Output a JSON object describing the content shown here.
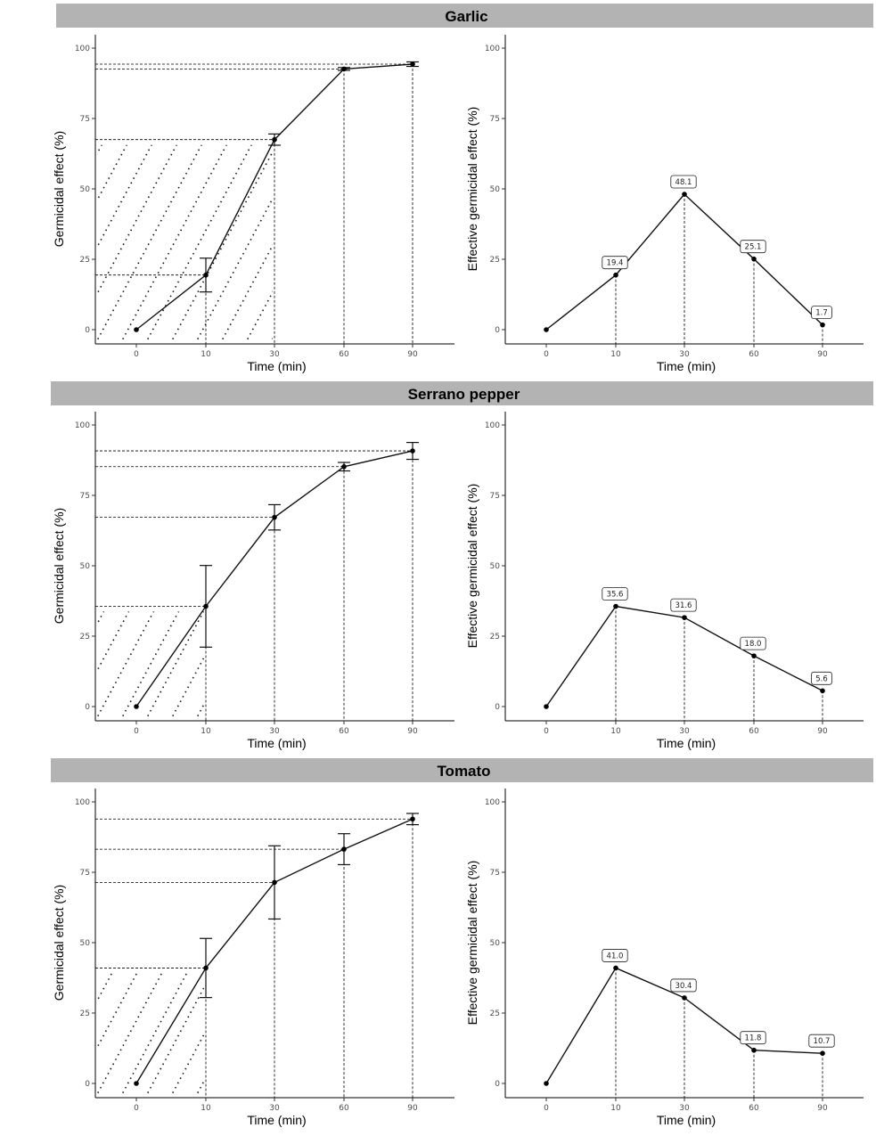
{
  "chart_data": [
    {
      "type": "line",
      "panel": "Garlic",
      "title": "Garlic",
      "x": [
        0,
        10,
        30,
        60,
        90
      ],
      "tick_labels": [
        "0",
        "10",
        "30",
        "60",
        "90"
      ],
      "left": {
        "ylabel": "Germicidal effect (%)",
        "xlabel": "Time (min)",
        "ylim": [
          0,
          100
        ],
        "yticks": [
          "0",
          "25",
          "50",
          "75",
          "100"
        ],
        "values": [
          0,
          19.4,
          67.5,
          92.6,
          94.3
        ],
        "error": [
          0,
          6.0,
          2.0,
          0.5,
          0.8
        ]
      },
      "right": {
        "ylabel": "Effective germicidal effect (%)",
        "xlabel": "Time (min)",
        "ylim": [
          0,
          100
        ],
        "yticks": [
          "0",
          "25",
          "50",
          "75",
          "100"
        ],
        "values": [
          0,
          19.4,
          48.1,
          25.1,
          1.7
        ],
        "labels": [
          "19.4",
          "48.1",
          "25.1",
          "1.7"
        ]
      }
    },
    {
      "type": "line",
      "panel": "Serrano pepper",
      "title": "Serrano pepper",
      "x": [
        0,
        10,
        30,
        60,
        90
      ],
      "tick_labels": [
        "0",
        "10",
        "30",
        "60",
        "90"
      ],
      "left": {
        "ylabel": "Germicidal effect (%)",
        "xlabel": "Time (min)",
        "ylim": [
          0,
          100
        ],
        "yticks": [
          "0",
          "25",
          "50",
          "75",
          "100"
        ],
        "values": [
          0,
          35.6,
          67.2,
          85.2,
          90.8
        ],
        "error": [
          0,
          14.5,
          4.5,
          1.5,
          3.0
        ]
      },
      "right": {
        "ylabel": "Effective germicidal effect (%)",
        "xlabel": "Time (min)",
        "ylim": [
          0,
          100
        ],
        "yticks": [
          "0",
          "25",
          "50",
          "75",
          "100"
        ],
        "values": [
          0,
          35.6,
          31.6,
          18.0,
          5.6
        ],
        "labels": [
          "35.6",
          "31.6",
          "18.0",
          "5.6"
        ]
      }
    },
    {
      "type": "line",
      "panel": "Tomato",
      "title": "Tomato",
      "x": [
        0,
        10,
        30,
        60,
        90
      ],
      "tick_labels": [
        "0",
        "10",
        "30",
        "60",
        "90"
      ],
      "left": {
        "ylabel": "Germicidal effect (%)",
        "xlabel": "Time (min)",
        "ylim": [
          0,
          100
        ],
        "yticks": [
          "0",
          "25",
          "50",
          "75",
          "100"
        ],
        "values": [
          0,
          41.0,
          71.4,
          83.2,
          93.9
        ],
        "error": [
          0,
          10.5,
          13.0,
          5.5,
          2.0
        ]
      },
      "right": {
        "ylabel": "Effective germicidal effect (%)",
        "xlabel": "Time (min)",
        "ylim": [
          0,
          100
        ],
        "yticks": [
          "0",
          "25",
          "50",
          "75",
          "100"
        ],
        "values": [
          0,
          41.0,
          30.4,
          11.8,
          10.7
        ],
        "labels": [
          "41.0",
          "30.4",
          "11.8",
          "10.7"
        ]
      }
    }
  ]
}
